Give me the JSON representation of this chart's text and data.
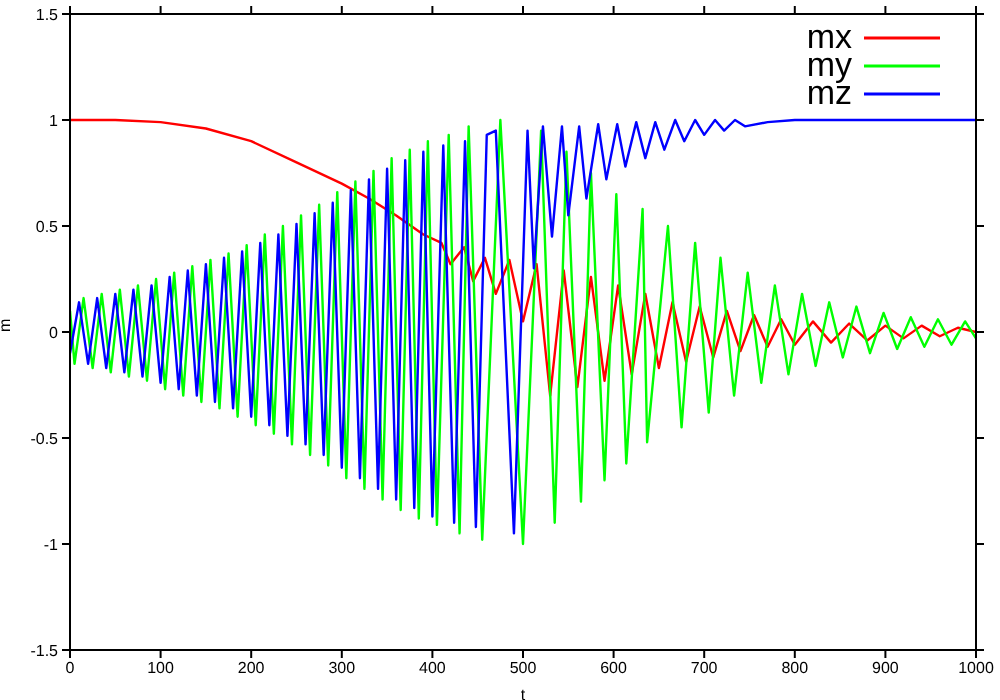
{
  "chart_data": {
    "type": "line",
    "xlabel": "t",
    "ylabel": "m",
    "xlim": [
      0,
      1000
    ],
    "ylim": [
      -1.5,
      1.5
    ],
    "xticks": [
      0,
      100,
      200,
      300,
      400,
      500,
      600,
      700,
      800,
      900,
      1000
    ],
    "yticks": [
      -1.5,
      -1,
      -0.5,
      0,
      0.5,
      1,
      1.5
    ],
    "grid": false,
    "legend": "top right",
    "marker": "none",
    "line_style": "solid",
    "series": [
      {
        "name": "mx",
        "color": "#ff0000",
        "x": [
          0,
          50,
          100,
          150,
          200,
          250,
          300,
          330,
          360,
          390,
          410,
          420,
          435,
          445,
          458,
          470,
          485,
          500,
          515,
          530,
          545,
          560,
          575,
          590,
          605,
          620,
          635,
          650,
          665,
          680,
          695,
          710,
          725,
          740,
          755,
          770,
          785,
          800,
          820,
          840,
          860,
          880,
          900,
          920,
          940,
          960,
          980,
          1000
        ],
        "values": [
          1,
          1,
          0.99,
          0.96,
          0.9,
          0.8,
          0.7,
          0.63,
          0.55,
          0.46,
          0.42,
          0.32,
          0.4,
          0.24,
          0.35,
          0.18,
          0.34,
          0.05,
          0.32,
          -0.3,
          0.29,
          -0.26,
          0.26,
          -0.23,
          0.22,
          -0.2,
          0.18,
          -0.17,
          0.14,
          -0.14,
          0.12,
          -0.12,
          0.1,
          -0.09,
          0.08,
          -0.07,
          0.06,
          -0.06,
          0.05,
          -0.05,
          0.04,
          -0.04,
          0.03,
          -0.03,
          0.03,
          -0.02,
          0.02,
          0
        ]
      },
      {
        "name": "my",
        "color": "#00ff00",
        "x": [
          0,
          5,
          15,
          25,
          35,
          45,
          55,
          65,
          75,
          85,
          95,
          105,
          115,
          125,
          135,
          145,
          155,
          165,
          175,
          185,
          195,
          205,
          215,
          225,
          235,
          245,
          255,
          265,
          275,
          285,
          295,
          305,
          315,
          325,
          335,
          345,
          355,
          365,
          375,
          385,
          395,
          405,
          418,
          430,
          440,
          455,
          475,
          500,
          520,
          535,
          548,
          564,
          575,
          590,
          603,
          614,
          632,
          637,
          660,
          675,
          690,
          705,
          718,
          733,
          748,
          763,
          778,
          793,
          808,
          823,
          838,
          853,
          868,
          883,
          898,
          913,
          928,
          943,
          958,
          973,
          988,
          1000
        ],
        "values": [
          0.1,
          -0.15,
          0.16,
          -0.17,
          0.18,
          -0.19,
          0.2,
          -0.21,
          0.22,
          -0.23,
          0.25,
          -0.27,
          0.28,
          -0.3,
          0.31,
          -0.33,
          0.34,
          -0.36,
          0.37,
          -0.4,
          0.41,
          -0.44,
          0.46,
          -0.48,
          0.5,
          -0.53,
          0.55,
          -0.58,
          0.6,
          -0.63,
          0.66,
          -0.69,
          0.71,
          -0.74,
          0.76,
          -0.79,
          0.82,
          -0.84,
          0.86,
          -0.88,
          0.9,
          -0.91,
          0.93,
          -0.95,
          0.97,
          -0.98,
          1,
          -1,
          0.95,
          -0.9,
          0.85,
          -0.8,
          0.75,
          -0.7,
          0.65,
          -0.62,
          0.58,
          -0.52,
          0.5,
          -0.45,
          0.42,
          -0.38,
          0.35,
          -0.3,
          0.28,
          -0.24,
          0.22,
          -0.2,
          0.18,
          -0.16,
          0.14,
          -0.12,
          0.12,
          -0.1,
          0.09,
          -0.08,
          0.07,
          -0.07,
          0.06,
          -0.06,
          0.05,
          -0.03
        ]
      },
      {
        "name": "mz",
        "color": "#0000ff",
        "x": [
          0,
          10,
          20,
          30,
          40,
          50,
          60,
          70,
          80,
          90,
          100,
          110,
          120,
          130,
          140,
          150,
          160,
          170,
          180,
          190,
          200,
          210,
          220,
          230,
          240,
          250,
          260,
          270,
          280,
          290,
          300,
          310,
          320,
          330,
          340,
          350,
          360,
          370,
          380,
          390,
          400,
          412,
          424,
          436,
          448,
          460,
          470,
          490,
          505,
          512,
          522,
          532,
          543,
          550,
          562,
          570,
          583,
          592,
          604,
          613,
          625,
          635,
          646,
          656,
          668,
          678,
          690,
          700,
          712,
          722,
          734,
          745,
          770,
          800,
          1000
        ],
        "values": [
          -0.1,
          0.14,
          -0.15,
          0.16,
          -0.17,
          0.18,
          -0.19,
          0.2,
          -0.21,
          0.22,
          -0.24,
          0.26,
          -0.27,
          0.29,
          -0.3,
          0.32,
          -0.33,
          0.35,
          -0.36,
          0.38,
          -0.4,
          0.42,
          -0.44,
          0.46,
          -0.49,
          0.51,
          -0.53,
          0.56,
          -0.58,
          0.61,
          -0.64,
          0.67,
          -0.69,
          0.72,
          -0.74,
          0.77,
          -0.79,
          0.81,
          -0.83,
          0.85,
          -0.87,
          0.88,
          -0.9,
          0.9,
          -0.92,
          0.93,
          0.95,
          -0.95,
          0.95,
          0.3,
          0.97,
          0.45,
          0.97,
          0.55,
          0.97,
          0.63,
          0.98,
          0.72,
          0.98,
          0.78,
          0.99,
          0.82,
          0.99,
          0.86,
          1,
          0.9,
          1,
          0.93,
          1,
          0.95,
          1,
          0.97,
          0.99,
          1,
          1
        ]
      }
    ]
  }
}
